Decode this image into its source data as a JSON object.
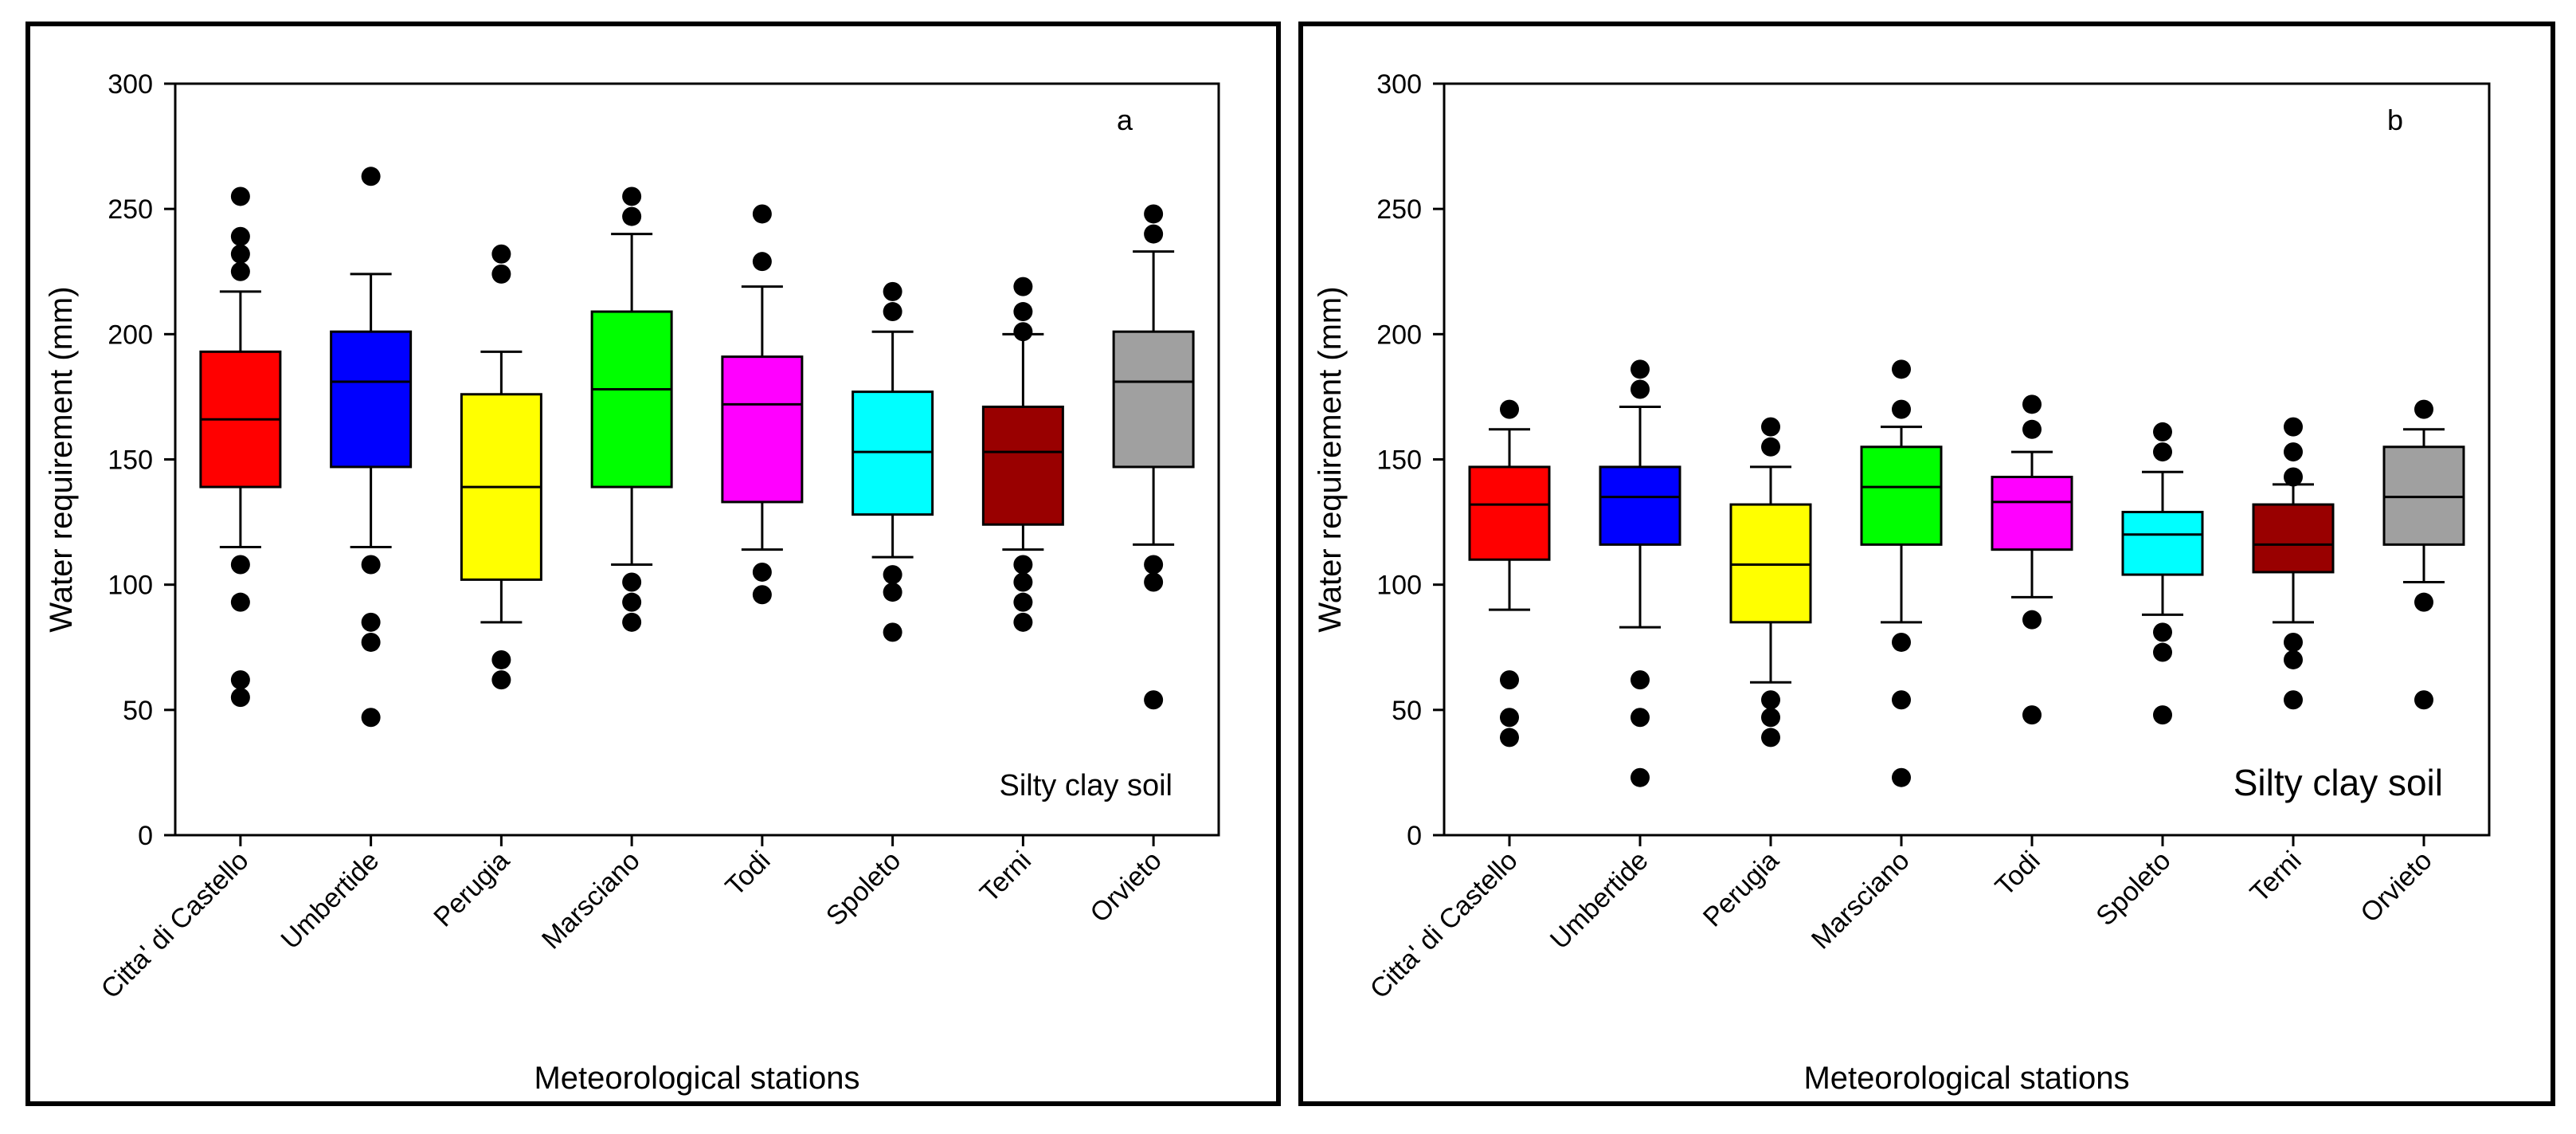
{
  "chart_data": [
    {
      "type": "boxplot",
      "panel_label": "a",
      "annotation": "Silty clay soil",
      "xlabel": "Meteorological stations",
      "ylabel": "Water requirement (mm)",
      "ylim": [
        0,
        300
      ],
      "yticks": [
        "0",
        "50",
        "100",
        "150",
        "200",
        "250",
        "300"
      ],
      "grid": false,
      "categories": [
        "Citta' di Castello",
        "Umbertide",
        "Perugia",
        "Marsciano",
        "Todi",
        "Spoleto",
        "Terni",
        "Orvieto"
      ],
      "colors": [
        "#ff0000",
        "#0000ff",
        "#ffff00",
        "#00ff00",
        "#ff00ff",
        "#00ffff",
        "#990000",
        "#a0a0a0"
      ],
      "boxes": [
        {
          "whisker_low": 115,
          "q1": 139,
          "median": 166,
          "q3": 193,
          "whisker_high": 217,
          "outliers": [
            108,
            93,
            62,
            55,
            225,
            232,
            239,
            255
          ]
        },
        {
          "whisker_low": 115,
          "q1": 147,
          "median": 181,
          "q3": 201,
          "whisker_high": 224,
          "outliers": [
            108,
            85,
            77,
            47,
            263
          ]
        },
        {
          "whisker_low": 85,
          "q1": 102,
          "median": 139,
          "q3": 176,
          "whisker_high": 193,
          "outliers": [
            70,
            62,
            224,
            232
          ]
        },
        {
          "whisker_low": 108,
          "q1": 139,
          "median": 178,
          "q3": 209,
          "whisker_high": 240,
          "outliers": [
            101,
            93,
            85,
            247,
            255
          ]
        },
        {
          "whisker_low": 114,
          "q1": 133,
          "median": 172,
          "q3": 191,
          "whisker_high": 219,
          "outliers": [
            105,
            96,
            229,
            248
          ]
        },
        {
          "whisker_low": 111,
          "q1": 128,
          "median": 153,
          "q3": 177,
          "whisker_high": 201,
          "outliers": [
            104,
            97,
            81,
            209,
            217
          ]
        },
        {
          "whisker_low": 114,
          "q1": 124,
          "median": 153,
          "q3": 171,
          "whisker_high": 200,
          "outliers": [
            108,
            101,
            93,
            85,
            201,
            209,
            219
          ]
        },
        {
          "whisker_low": 116,
          "q1": 147,
          "median": 181,
          "q3": 201,
          "whisker_high": 233,
          "outliers": [
            108,
            101,
            54,
            240,
            248
          ]
        }
      ]
    },
    {
      "type": "boxplot",
      "panel_label": "b",
      "annotation": "Silty clay soil",
      "xlabel": "Meteorological stations",
      "ylabel": "Water requirement (mm)",
      "ylim": [
        0,
        300
      ],
      "yticks": [
        "0",
        "50",
        "100",
        "150",
        "200",
        "250",
        "300"
      ],
      "grid": false,
      "categories": [
        "Citta' di Castello",
        "Umbertide",
        "Perugia",
        "Marsciano",
        "Todi",
        "Spoleto",
        "Terni",
        "Orvieto"
      ],
      "colors": [
        "#ff0000",
        "#0000ff",
        "#ffff00",
        "#00ff00",
        "#ff00ff",
        "#00ffff",
        "#990000",
        "#a0a0a0"
      ],
      "boxes": [
        {
          "whisker_low": 90,
          "q1": 110,
          "median": 132,
          "q3": 147,
          "whisker_high": 162,
          "outliers": [
            62,
            47,
            39,
            170
          ]
        },
        {
          "whisker_low": 83,
          "q1": 116,
          "median": 135,
          "q3": 147,
          "whisker_high": 171,
          "outliers": [
            62,
            47,
            23,
            178,
            186
          ]
        },
        {
          "whisker_low": 61,
          "q1": 85,
          "median": 108,
          "q3": 132,
          "whisker_high": 147,
          "outliers": [
            54,
            47,
            39,
            155,
            163
          ]
        },
        {
          "whisker_low": 85,
          "q1": 116,
          "median": 139,
          "q3": 155,
          "whisker_high": 163,
          "outliers": [
            77,
            54,
            23,
            170,
            186
          ]
        },
        {
          "whisker_low": 95,
          "q1": 114,
          "median": 133,
          "q3": 143,
          "whisker_high": 153,
          "outliers": [
            86,
            48,
            162,
            172
          ]
        },
        {
          "whisker_low": 88,
          "q1": 104,
          "median": 120,
          "q3": 129,
          "whisker_high": 145,
          "outliers": [
            81,
            73,
            48,
            153,
            161
          ]
        },
        {
          "whisker_low": 85,
          "q1": 105,
          "median": 116,
          "q3": 132,
          "whisker_high": 140,
          "outliers": [
            77,
            70,
            54,
            143,
            153,
            163
          ]
        },
        {
          "whisker_low": 101,
          "q1": 116,
          "median": 135,
          "q3": 155,
          "whisker_high": 162,
          "outliers": [
            93,
            54,
            170
          ]
        }
      ]
    }
  ]
}
